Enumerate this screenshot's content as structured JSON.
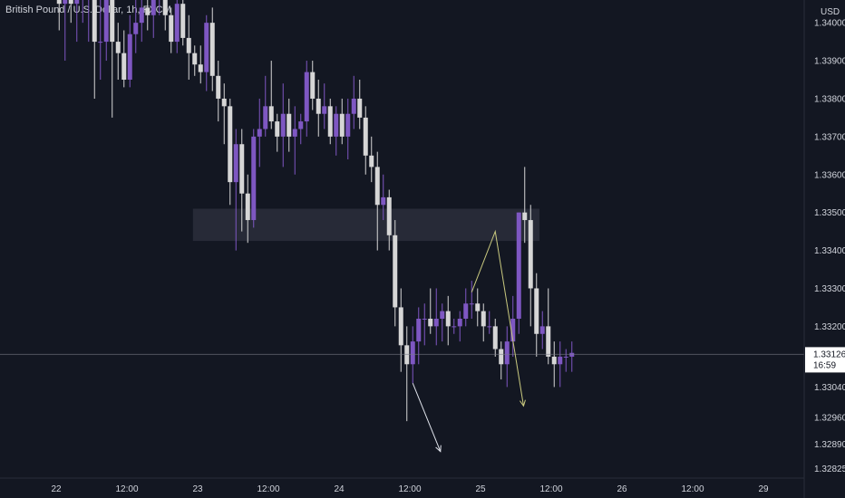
{
  "chart_data": {
    "type": "candlestick",
    "title": "British Pound / U.S. Dollar, 1h, FXCM",
    "currency": "USD",
    "ylim": [
      1.328,
      1.3406
    ],
    "y_ticks": [
      "1.34000",
      "1.33900",
      "1.33800",
      "1.33700",
      "1.33600",
      "1.33500",
      "1.33400",
      "1.33300",
      "1.33200",
      "1.33040",
      "1.32960",
      "1.32890",
      "1.32825"
    ],
    "x_ticks": [
      {
        "label": "22",
        "bar": 0
      },
      {
        "label": "12:00",
        "bar": 12
      },
      {
        "label": "23",
        "bar": 24
      },
      {
        "label": "12:00",
        "bar": 36
      },
      {
        "label": "24",
        "bar": 48
      },
      {
        "label": "12:00",
        "bar": 60
      },
      {
        "label": "25",
        "bar": 72
      },
      {
        "label": "12:00",
        "bar": 84
      },
      {
        "label": "26",
        "bar": 96
      },
      {
        "label": "12:00",
        "bar": 108
      },
      {
        "label": "29",
        "bar": 120
      }
    ],
    "current_price": {
      "value": 1.33126,
      "label": "1.33126",
      "countdown": "16:59"
    },
    "candles": [
      [
        1.3417,
        1.3417,
        1.3398,
        1.3405
      ],
      [
        1.3405,
        1.343,
        1.339,
        1.342
      ],
      [
        1.342,
        1.3425,
        1.34,
        1.3405
      ],
      [
        1.3405,
        1.3415,
        1.3395,
        1.341
      ],
      [
        1.341,
        1.342,
        1.34,
        1.341
      ],
      [
        1.341,
        1.3415,
        1.3395,
        1.341
      ],
      [
        1.341,
        1.3412,
        1.338,
        1.3395
      ],
      [
        1.3395,
        1.341,
        1.3385,
        1.3395
      ],
      [
        1.3395,
        1.342,
        1.339,
        1.341
      ],
      [
        1.341,
        1.3412,
        1.3375,
        1.3395
      ],
      [
        1.3395,
        1.34,
        1.3385,
        1.3392
      ],
      [
        1.3392,
        1.3398,
        1.3383,
        1.3385
      ],
      [
        1.3385,
        1.3402,
        1.3383,
        1.3397
      ],
      [
        1.3397,
        1.3406,
        1.3392,
        1.34
      ],
      [
        1.34,
        1.3412,
        1.3395,
        1.3404
      ],
      [
        1.3404,
        1.3414,
        1.3398,
        1.3402
      ],
      [
        1.3402,
        1.341,
        1.3396,
        1.3407
      ],
      [
        1.3407,
        1.3418,
        1.3402,
        1.341
      ],
      [
        1.341,
        1.3412,
        1.3398,
        1.3402
      ],
      [
        1.3402,
        1.3404,
        1.3392,
        1.3395
      ],
      [
        1.3395,
        1.341,
        1.3392,
        1.3405
      ],
      [
        1.3405,
        1.3408,
        1.3394,
        1.3396
      ],
      [
        1.3396,
        1.3402,
        1.3385,
        1.3392
      ],
      [
        1.3392,
        1.3394,
        1.3386,
        1.3389
      ],
      [
        1.3389,
        1.3394,
        1.3384,
        1.3387
      ],
      [
        1.3387,
        1.3402,
        1.3382,
        1.34
      ],
      [
        1.34,
        1.3404,
        1.3382,
        1.3386
      ],
      [
        1.3386,
        1.339,
        1.3374,
        1.338
      ],
      [
        1.338,
        1.3384,
        1.3368,
        1.3378
      ],
      [
        1.3378,
        1.338,
        1.3352,
        1.3358
      ],
      [
        1.3358,
        1.3372,
        1.334,
        1.3368
      ],
      [
        1.3368,
        1.3372,
        1.3345,
        1.3355
      ],
      [
        1.3355,
        1.336,
        1.3342,
        1.3348
      ],
      [
        1.3348,
        1.3372,
        1.3346,
        1.337
      ],
      [
        1.337,
        1.338,
        1.3362,
        1.3372
      ],
      [
        1.3372,
        1.3386,
        1.337,
        1.3378
      ],
      [
        1.3378,
        1.339,
        1.3372,
        1.3374
      ],
      [
        1.3374,
        1.3376,
        1.3366,
        1.337
      ],
      [
        1.337,
        1.3384,
        1.3362,
        1.3376
      ],
      [
        1.3376,
        1.338,
        1.3366,
        1.337
      ],
      [
        1.337,
        1.3378,
        1.336,
        1.3372
      ],
      [
        1.3372,
        1.3376,
        1.3368,
        1.3374
      ],
      [
        1.3374,
        1.339,
        1.337,
        1.3387
      ],
      [
        1.3387,
        1.339,
        1.3377,
        1.338
      ],
      [
        1.338,
        1.3385,
        1.337,
        1.3376
      ],
      [
        1.3376,
        1.3384,
        1.3372,
        1.3378
      ],
      [
        1.3378,
        1.338,
        1.3368,
        1.337
      ],
      [
        1.337,
        1.3378,
        1.3365,
        1.3376
      ],
      [
        1.3376,
        1.338,
        1.3368,
        1.337
      ],
      [
        1.337,
        1.338,
        1.3364,
        1.3376
      ],
      [
        1.3376,
        1.3386,
        1.3372,
        1.338
      ],
      [
        1.338,
        1.3385,
        1.3372,
        1.3375
      ],
      [
        1.3375,
        1.3378,
        1.336,
        1.3365
      ],
      [
        1.3365,
        1.337,
        1.3358,
        1.3362
      ],
      [
        1.3362,
        1.3366,
        1.334,
        1.3352
      ],
      [
        1.3352,
        1.336,
        1.3348,
        1.3354
      ],
      [
        1.3354,
        1.3356,
        1.334,
        1.3344
      ],
      [
        1.3344,
        1.3348,
        1.332,
        1.3325
      ],
      [
        1.3325,
        1.333,
        1.3308,
        1.3315
      ],
      [
        1.3315,
        1.332,
        1.3295,
        1.331
      ],
      [
        1.331,
        1.332,
        1.3305,
        1.3316
      ],
      [
        1.3316,
        1.3325,
        1.331,
        1.3322
      ],
      [
        1.3322,
        1.3326,
        1.3315,
        1.3322
      ],
      [
        1.3322,
        1.333,
        1.3318,
        1.332
      ],
      [
        1.332,
        1.333,
        1.3315,
        1.3322
      ],
      [
        1.3322,
        1.3326,
        1.3316,
        1.3324
      ],
      [
        1.3324,
        1.3328,
        1.3315,
        1.332
      ],
      [
        1.332,
        1.3322,
        1.3318,
        1.332
      ],
      [
        1.332,
        1.3324,
        1.3316,
        1.3322
      ],
      [
        1.3322,
        1.333,
        1.332,
        1.3326
      ],
      [
        1.3326,
        1.3332,
        1.3322,
        1.3326
      ],
      [
        1.3326,
        1.333,
        1.332,
        1.3324
      ],
      [
        1.3324,
        1.3326,
        1.3316,
        1.332
      ],
      [
        1.332,
        1.3324,
        1.3318,
        1.332
      ],
      [
        1.332,
        1.3322,
        1.3312,
        1.3314
      ],
      [
        1.3314,
        1.3316,
        1.3306,
        1.331
      ],
      [
        1.331,
        1.332,
        1.3304,
        1.3316
      ],
      [
        1.3316,
        1.3328,
        1.3312,
        1.3322
      ],
      [
        1.3322,
        1.335,
        1.3318,
        1.335
      ],
      [
        1.335,
        1.3362,
        1.3342,
        1.3348
      ],
      [
        1.3348,
        1.3352,
        1.332,
        1.333
      ],
      [
        1.333,
        1.3334,
        1.3312,
        1.3318
      ],
      [
        1.3318,
        1.3324,
        1.3314,
        1.332
      ],
      [
        1.332,
        1.333,
        1.331,
        1.3312
      ],
      [
        1.3312,
        1.3316,
        1.3304,
        1.331
      ],
      [
        1.331,
        1.3316,
        1.3304,
        1.3312
      ],
      [
        1.3312,
        1.3314,
        1.3308,
        1.3312
      ],
      [
        1.3312,
        1.3316,
        1.3308,
        1.3313
      ]
    ],
    "zone": {
      "price_top": 1.3351,
      "price_bottom": 1.33425,
      "bar_start": 23.2,
      "bar_end": 82
    },
    "forecast_paths": [
      {
        "color": "#c9c97f",
        "points": [
          [
            70.5,
            1.3329
          ],
          [
            74.5,
            1.3345
          ],
          [
            79.3,
            1.3299
          ]
        ]
      },
      {
        "color": "#e0e3eb",
        "points": [
          [
            60.5,
            1.3305
          ],
          [
            65.2,
            1.3287
          ]
        ]
      }
    ],
    "colors": {
      "up": "#7e57c2",
      "down": "#d6d6d6",
      "background": "#131722",
      "axis_text": "#d1d4dc",
      "zone": "#2b2e3b",
      "price_line": "#787b86"
    }
  }
}
